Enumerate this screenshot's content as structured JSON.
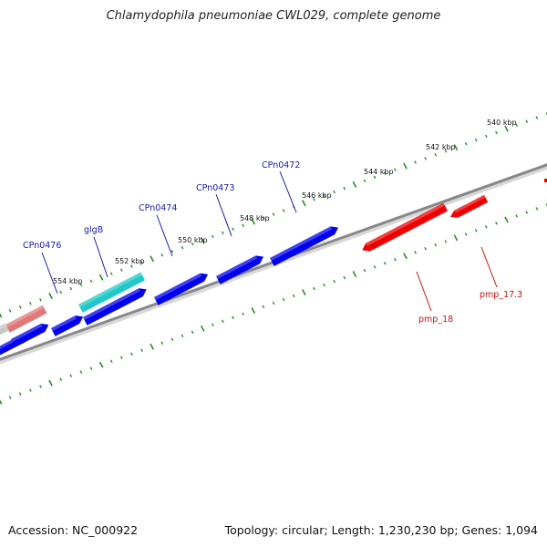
{
  "title": "Chlamydophila pneumoniae CWL029, complete genome",
  "accession": "Accession: NC_000922",
  "topology": "Topology: circular; Length: 1,230,230 bp; Genes: 1,094",
  "scale_labels": [
    {
      "id": "kbp-540",
      "text": "540 kbp"
    },
    {
      "id": "kbp-542",
      "text": "542 kbp"
    },
    {
      "id": "kbp-544",
      "text": "544 kbp"
    },
    {
      "id": "kbp-546",
      "text": "546 kbp"
    },
    {
      "id": "kbp-548",
      "text": "548 kbp"
    },
    {
      "id": "kbp-550",
      "text": "550 kbp"
    },
    {
      "id": "kbp-552",
      "text": "552 kbp"
    },
    {
      "id": "kbp-554",
      "text": "554 kbp"
    }
  ],
  "gene_labels": [
    {
      "id": "CPn0472",
      "text": "CPn0472",
      "strand": "forward"
    },
    {
      "id": "CPn0473",
      "text": "CPn0473",
      "strand": "forward"
    },
    {
      "id": "CPn0474",
      "text": "CPn0474",
      "strand": "forward"
    },
    {
      "id": "glgB",
      "text": "glgB",
      "strand": "forward"
    },
    {
      "id": "CPn0476",
      "text": "CPn0476",
      "strand": "forward"
    },
    {
      "id": "pmp_17.3",
      "text": "pmp_17.3",
      "strand": "reverse"
    },
    {
      "id": "pmp_18",
      "text": "pmp_18",
      "strand": "reverse"
    }
  ],
  "colors": {
    "forward_gene": "#0000ee",
    "reverse_gene": "#ee0000",
    "highlight_gene": "#20c8c8",
    "pseudo_gene": "#e07878",
    "backbone": "#888888",
    "tick": "#2a8a2a",
    "forward_label": "#1a1aaa",
    "reverse_label": "#cc1111"
  }
}
